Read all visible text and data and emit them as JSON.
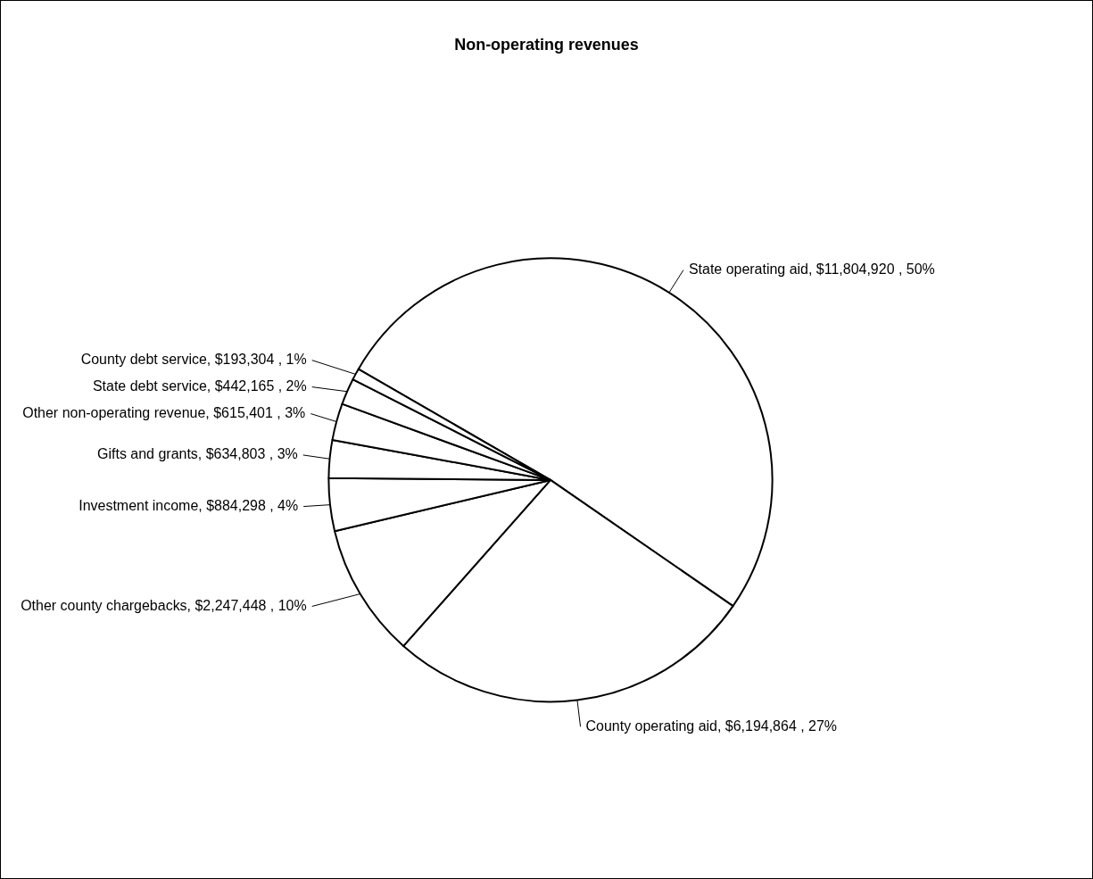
{
  "chart_data": {
    "type": "pie",
    "title": "Non-operating revenues",
    "categories": [
      "State operating aid",
      "County operating aid",
      "Other county chargebacks",
      "Investment income",
      "Gifts and grants",
      "Other non-operating revenue",
      "State debt service",
      "County debt service"
    ],
    "values": [
      11804920,
      6194864,
      2247448,
      884298,
      634803,
      615401,
      442165,
      193304
    ],
    "value_labels": [
      "$11,804,920 , 50%",
      "$6,194,864 , 27%",
      "$2,247,448 , 10%",
      "$884,298 , 4%",
      "$634,803 , 3%",
      "$615,401 , 3%",
      "$442,165 , 2%",
      "$193,304 , 1%"
    ],
    "colors": [
      "#ffffff",
      "#ffffff",
      "#ffffff",
      "#ffffff",
      "#ffffff",
      "#ffffff",
      "#ffffff",
      "#ffffff"
    ],
    "legend": false
  }
}
